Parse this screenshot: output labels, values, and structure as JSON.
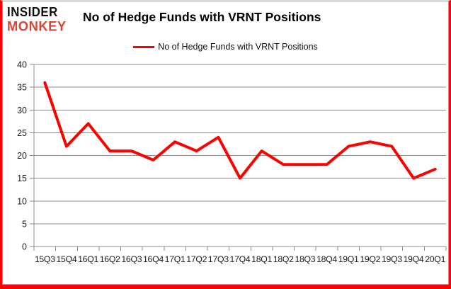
{
  "logo": {
    "line1": "INSIDER",
    "line2": "MONKEY"
  },
  "header": {
    "title": "No of Hedge Funds with VRNT Positions"
  },
  "legend": {
    "label": "No of Hedge Funds with VRNT Positions"
  },
  "colors": {
    "line": "#ff0000",
    "grid": "#8c8c8c",
    "axis": "#8c8c8c",
    "tick_label": "#1a1a1a",
    "logo_black": "#0d0d0d",
    "logo_red": "#d34836",
    "page_border_red": "#ff0000",
    "chart_border_gray": "#a6a6a6"
  },
  "chart_data": {
    "type": "line",
    "title": "No of Hedge Funds with VRNT Positions",
    "categories": [
      "15Q3",
      "15Q4",
      "16Q1",
      "16Q2",
      "16Q3",
      "16Q4",
      "17Q1",
      "17Q2",
      "17Q3",
      "17Q4",
      "18Q1",
      "18Q2",
      "18Q3",
      "18Q4",
      "19Q1",
      "19Q2",
      "19Q3",
      "19Q4",
      "20Q1"
    ],
    "series": [
      {
        "name": "No of Hedge Funds with VRNT Positions",
        "color": "#ff0000",
        "values": [
          36,
          22,
          27,
          21,
          21,
          19,
          23,
          21,
          24,
          15,
          21,
          18,
          18,
          18,
          22,
          23,
          22,
          15,
          17
        ]
      }
    ],
    "xlabel": "",
    "ylabel": "",
    "ylim": [
      0,
      40
    ],
    "yticks": [
      0,
      5,
      10,
      15,
      20,
      25,
      30,
      35,
      40
    ],
    "grid": "horizontal",
    "legend_position": "top-center"
  }
}
